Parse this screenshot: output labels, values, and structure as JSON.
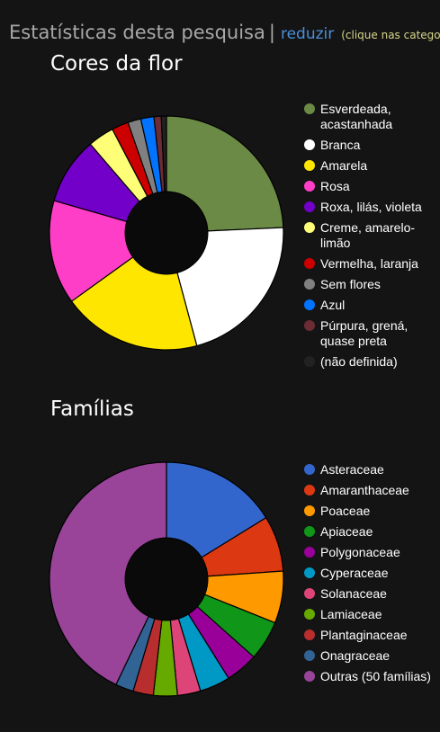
{
  "header": {
    "title": "Estatísticas desta pesquisa",
    "separator": "|",
    "link": "reduzir",
    "hint": "(clique nas catego"
  },
  "chart_data": [
    {
      "type": "pie",
      "title": "Cores da flor",
      "categories": [
        "Esverdeada, acastanhada",
        "Branca",
        "Amarela",
        "Rosa",
        "Roxa, lilás, violeta",
        "Creme, amarelo-limão",
        "Vermelha, laranja",
        "Sem flores",
        "Azul",
        "Púrpura, grená, quase preta",
        "(não definida)"
      ],
      "values": [
        24.1,
        21.4,
        19.1,
        14.3,
        9.2,
        3.6,
        2.3,
        1.8,
        1.8,
        1.0,
        0.7
      ],
      "colors": [
        "#6b8a45",
        "#ffffff",
        "#ffe600",
        "#ff3ec8",
        "#7300c8",
        "#ffff77",
        "#cc0000",
        "#808080",
        "#0073ff",
        "#6b2c33",
        "#222222"
      ],
      "legend": "right"
    },
    {
      "type": "pie",
      "title": "Famílias",
      "categories": [
        "Asteraceae",
        "Amaranthaceae",
        "Poaceae",
        "Apiaceae",
        "Polygonaceae",
        "Cyperaceae",
        "Solanaceae",
        "Lamiaceae",
        "Plantaginaceae",
        "Onagraceae",
        "Outras (50 famílias)"
      ],
      "values": [
        16.2,
        7.7,
        7.2,
        5.5,
        4.5,
        4.2,
        3.2,
        3.3,
        2.8,
        2.5,
        42.9
      ],
      "colors": [
        "#3366cc",
        "#dc3912",
        "#ff9900",
        "#109618",
        "#990099",
        "#0099c6",
        "#dd4477",
        "#66aa00",
        "#b82e2e",
        "#316395",
        "#994499"
      ],
      "legend": "right"
    }
  ]
}
